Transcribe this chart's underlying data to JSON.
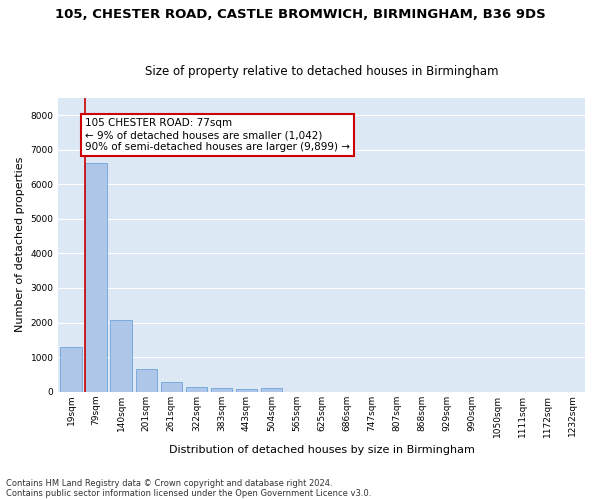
{
  "title1": "105, CHESTER ROAD, CASTLE BROMWICH, BIRMINGHAM, B36 9DS",
  "title2": "Size of property relative to detached houses in Birmingham",
  "xlabel": "Distribution of detached houses by size in Birmingham",
  "ylabel": "Number of detached properties",
  "footnote1": "Contains HM Land Registry data © Crown copyright and database right 2024.",
  "footnote2": "Contains public sector information licensed under the Open Government Licence v3.0.",
  "annotation_line1": "105 CHESTER ROAD: 77sqm",
  "annotation_line2": "← 9% of detached houses are smaller (1,042)",
  "annotation_line3": "90% of semi-detached houses are larger (9,899) →",
  "bar_labels": [
    "19sqm",
    "79sqm",
    "140sqm",
    "201sqm",
    "261sqm",
    "322sqm",
    "383sqm",
    "443sqm",
    "504sqm",
    "565sqm",
    "625sqm",
    "686sqm",
    "747sqm",
    "807sqm",
    "868sqm",
    "929sqm",
    "990sqm",
    "1050sqm",
    "1111sqm",
    "1172sqm",
    "1232sqm"
  ],
  "bar_values": [
    1300,
    6600,
    2080,
    650,
    290,
    145,
    95,
    75,
    110,
    0,
    0,
    0,
    0,
    0,
    0,
    0,
    0,
    0,
    0,
    0,
    0
  ],
  "bar_color": "#aec6e8",
  "bar_edge_color": "#5b9bd5",
  "marker_color": "#cc0000",
  "ylim": [
    0,
    8500
  ],
  "yticks": [
    0,
    1000,
    2000,
    3000,
    4000,
    5000,
    6000,
    7000,
    8000
  ],
  "bg_color": "#dde8f5",
  "grid_color": "#ffffff",
  "annotation_box_color": "#cc0000",
  "fig_bg": "#ffffff",
  "title_fontsize": 9.5,
  "subtitle_fontsize": 8.5,
  "axis_label_fontsize": 8,
  "tick_fontsize": 6.5,
  "footnote_fontsize": 6,
  "annotation_fontsize": 7.5
}
